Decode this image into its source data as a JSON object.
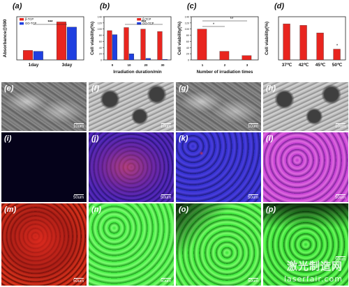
{
  "chart_data": [
    {
      "letter": "(a)",
      "type": "bar",
      "ylabel": "Absorbance@590",
      "categories": [
        "1day",
        "3day"
      ],
      "series": [
        {
          "name": "β-TCP",
          "color": "#e8251f",
          "values": [
            0.22,
            0.88
          ]
        },
        {
          "name": "GO-TCP",
          "color": "#1f3fe0",
          "values": [
            0.2,
            0.76
          ]
        }
      ],
      "ylim": [
        0,
        1
      ],
      "annotations": [
        "***"
      ]
    },
    {
      "letter": "(b)",
      "type": "bar",
      "ylabel": "Cell viability(%)",
      "xlabel": "Irradiation duration/min",
      "categories": [
        "0",
        "10",
        "20",
        "30"
      ],
      "yticks": [
        "0",
        "20",
        "40",
        "60",
        "80",
        "100",
        "120",
        "140"
      ],
      "series": [
        {
          "name": "β-TCP",
          "color": "#e8251f",
          "values": [
            95,
            105,
            100,
            92
          ]
        },
        {
          "name": "GO-TCP",
          "color": "#1f3fe0",
          "values": [
            82,
            20,
            5,
            2
          ]
        }
      ],
      "ylim": [
        0,
        140
      ],
      "annotations": [
        "***"
      ]
    },
    {
      "letter": "(c)",
      "type": "bar",
      "ylabel": "Cell viability(%)",
      "xlabel": "Number of irradiation times",
      "categories": [
        "1",
        "2",
        "3"
      ],
      "yticks": [
        "0",
        "20",
        "40",
        "60",
        "80",
        "100",
        "120",
        "140"
      ],
      "series": [
        {
          "name": "",
          "color": "#e8251f",
          "values": [
            100,
            28,
            14
          ]
        }
      ],
      "ylim": [
        0,
        140
      ],
      "annotations": [
        "*",
        "**"
      ]
    },
    {
      "letter": "(d)",
      "type": "bar",
      "ylabel": "Cell viability(%)",
      "categories": [
        "37℃",
        "42℃",
        "45℃",
        "50℃"
      ],
      "series": [
        {
          "name": "",
          "color": "#e8251f",
          "values": [
            100,
            96,
            75,
            30
          ]
        }
      ],
      "ylim": [
        0,
        120
      ],
      "annotations": [
        "*"
      ]
    }
  ],
  "sem_panels": [
    {
      "letter": "(e)",
      "scale": "10um"
    },
    {
      "letter": "(f)",
      "scale": "10um"
    },
    {
      "letter": "(g)",
      "scale": "10um"
    },
    {
      "letter": "(h)",
      "scale": "10um"
    }
  ],
  "fluor_row1": [
    {
      "letter": "(i)",
      "scale": "50um"
    },
    {
      "letter": "(j)",
      "scale": "50um"
    },
    {
      "letter": "(k)",
      "scale": "50um"
    },
    {
      "letter": "(l)",
      "scale": "50um"
    }
  ],
  "fluor_row2": [
    {
      "letter": "(m)",
      "scale": "50um"
    },
    {
      "letter": "(n)",
      "scale": "50um"
    },
    {
      "letter": "(o)",
      "scale": "50um"
    },
    {
      "letter": "(p)",
      "scale": "50um"
    }
  ],
  "watermark": {
    "cn": "激光制造网",
    "en": "laserfair.com"
  }
}
